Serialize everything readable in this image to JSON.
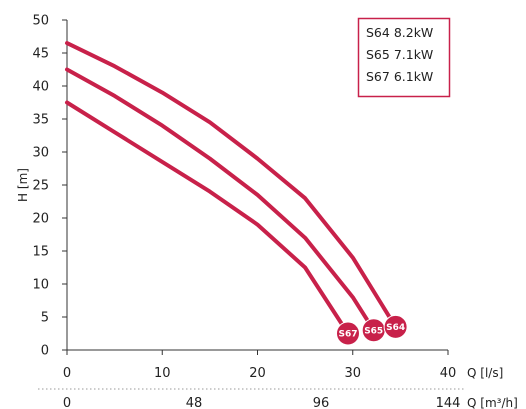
{
  "chart_data": {
    "type": "line",
    "ylabel": "H [m]",
    "xlabel": "Q [l/s]",
    "x2label": "Q [m³/h]",
    "xlim": [
      0,
      40
    ],
    "ylim": [
      0,
      50
    ],
    "x_ticks": [
      0,
      10,
      20,
      30,
      40
    ],
    "y_ticks": [
      0,
      5,
      10,
      15,
      20,
      25,
      30,
      35,
      40,
      45,
      50
    ],
    "x2_ticks": [
      {
        "q": 0,
        "label": "0"
      },
      {
        "q": 13.33,
        "label": "48"
      },
      {
        "q": 26.67,
        "label": "96"
      },
      {
        "q": 40,
        "label": "144"
      }
    ],
    "legend_position": "top-right",
    "line_color": "#c8214a",
    "series": [
      {
        "name": "S64 8.2kW",
        "badge": "S64",
        "x": [
          0,
          5,
          10,
          15,
          20,
          25,
          30,
          34.5
        ],
        "y": [
          46.5,
          43,
          39,
          34.5,
          29,
          23,
          14,
          3.5
        ]
      },
      {
        "name": "S65 7.1kW",
        "badge": "S65",
        "x": [
          0,
          5,
          10,
          15,
          20,
          25,
          30,
          32.2
        ],
        "y": [
          42.5,
          38.5,
          34,
          29,
          23.5,
          17,
          8,
          3
        ]
      },
      {
        "name": "S67 6.1kW",
        "badge": "S67",
        "x": [
          0,
          5,
          10,
          15,
          20,
          25,
          29.5
        ],
        "y": [
          37.5,
          33,
          28.5,
          24,
          19,
          12.5,
          2.5
        ]
      }
    ]
  }
}
